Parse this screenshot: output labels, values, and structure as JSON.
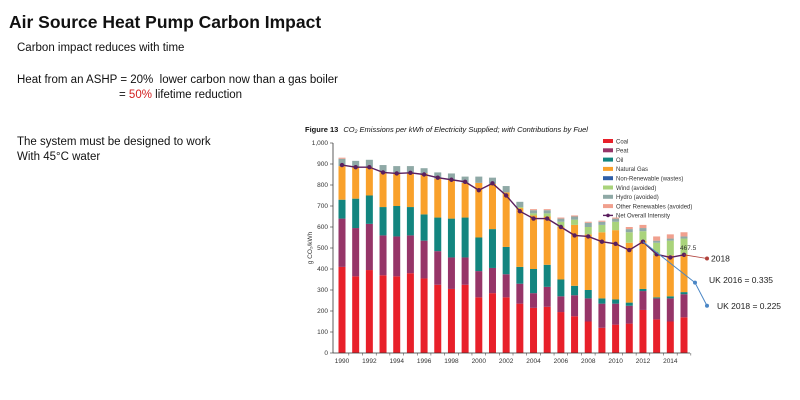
{
  "slide": {
    "title": "Air Source Heat Pump Carbon Impact",
    "line1": "Carbon impact reduces with time",
    "line2_prefix": "Heat from an ASHP = 20%  lower carbon now than a gas boiler",
    "line3_prefix": "= ",
    "line3_highlight": "50%",
    "line3_suffix": " lifetime reduction",
    "line4": "The system must be designed to work",
    "line5": "With 45°C water",
    "highlight_color": "#d21f1f"
  },
  "figure": {
    "label": "Figure 13",
    "caption": "CO₂ Emissions per kWh of Electricity Supplied; with Contributions by Fuel"
  },
  "annotations": {
    "last_value_label": "467.5",
    "point_2018_label": "2018",
    "uk2016_label": "UK 2016  = 0.335",
    "uk2018_label": "UK 2018  = 0.225",
    "projection_2018_value": 450,
    "uk2016_value": 335,
    "uk2018_value": 225,
    "red_line_color": "#b0403a",
    "blue_line_color": "#4a86c5"
  },
  "chart_data": {
    "type": "bar",
    "stacked": true,
    "title": "CO2 Emissions per kWh of Electricity Supplied; with Contributions by Fuel",
    "xlabel": "",
    "ylabel": "g CO₂/kWh",
    "ylim": [
      0,
      1000
    ],
    "yticks": [
      0,
      100,
      200,
      300,
      400,
      500,
      600,
      700,
      800,
      900,
      1000
    ],
    "ytick_labels": [
      "0",
      "100",
      "200",
      "300",
      "400",
      "500",
      "600",
      "700",
      "800",
      "900",
      "1,000"
    ],
    "xtick_labels": [
      "1990",
      "1992",
      "1994",
      "1996",
      "1998",
      "2000",
      "2002",
      "2004",
      "2006",
      "2008",
      "2010",
      "2012",
      "2014"
    ],
    "legend_position": "top-right",
    "grid": false,
    "categories": [
      "1990",
      "1991",
      "1992",
      "1993",
      "1994",
      "1995",
      "1996",
      "1997",
      "1998",
      "1999",
      "2000",
      "2001",
      "2002",
      "2003",
      "2004",
      "2005",
      "2006",
      "2007",
      "2008",
      "2009",
      "2010",
      "2011",
      "2012",
      "2013",
      "2014",
      "2015"
    ],
    "series": [
      {
        "name": "Coal",
        "color": "#e8202a",
        "values": [
          410,
          365,
          395,
          370,
          365,
          380,
          355,
          325,
          305,
          325,
          265,
          285,
          265,
          235,
          215,
          220,
          195,
          175,
          150,
          120,
          135,
          140,
          205,
          160,
          150,
          170
        ]
      },
      {
        "name": "Peat",
        "color": "#963568",
        "values": [
          230,
          230,
          220,
          190,
          190,
          180,
          180,
          160,
          150,
          130,
          125,
          120,
          110,
          95,
          70,
          95,
          75,
          100,
          110,
          115,
          100,
          85,
          90,
          100,
          110,
          110
        ]
      },
      {
        "name": "Oil",
        "color": "#13857f",
        "values": [
          90,
          140,
          135,
          135,
          145,
          135,
          125,
          160,
          185,
          190,
          160,
          185,
          130,
          80,
          115,
          105,
          80,
          45,
          40,
          25,
          20,
          15,
          10,
          5,
          10,
          10
        ]
      },
      {
        "name": "Natural Gas",
        "color": "#f9a12b",
        "values": [
          160,
          150,
          135,
          165,
          155,
          165,
          195,
          185,
          185,
          165,
          260,
          215,
          260,
          280,
          255,
          230,
          250,
          290,
          265,
          315,
          330,
          285,
          230,
          200,
          195,
          180
        ]
      },
      {
        "name": "Non-Renewable (wastes)",
        "color": "#2f5fa8",
        "values": [
          0,
          0,
          0,
          0,
          0,
          0,
          0,
          0,
          0,
          0,
          0,
          0,
          0,
          0,
          0,
          0,
          0,
          0,
          0,
          0,
          0,
          0,
          0,
          0,
          0,
          0
        ]
      },
      {
        "name": "Wind (avoided)",
        "color": "#a9d37b",
        "values": [
          0,
          0,
          0,
          0,
          0,
          0,
          0,
          0,
          0,
          0,
          0,
          0,
          0,
          5,
          10,
          15,
          25,
          25,
          35,
          35,
          40,
          50,
          45,
          60,
          70,
          75
        ]
      },
      {
        "name": "Hydro (avoided)",
        "color": "#8fa9a6",
        "values": [
          35,
          30,
          35,
          35,
          35,
          30,
          25,
          30,
          30,
          30,
          30,
          30,
          30,
          25,
          15,
          15,
          15,
          15,
          20,
          15,
          15,
          15,
          15,
          10,
          10,
          10
        ]
      },
      {
        "name": "Other Renewables (avoided)",
        "color": "#f0a08e",
        "values": [
          5,
          0,
          0,
          0,
          0,
          0,
          0,
          0,
          0,
          0,
          0,
          0,
          0,
          0,
          5,
          5,
          5,
          5,
          5,
          5,
          5,
          10,
          15,
          20,
          20,
          20
        ]
      }
    ],
    "line_series": {
      "name": "Net Overall Intensity",
      "color": "#5a1f5e",
      "values": [
        895,
        885,
        885,
        860,
        855,
        858,
        850,
        835,
        825,
        815,
        775,
        808,
        750,
        675,
        640,
        640,
        600,
        560,
        555,
        530,
        520,
        490,
        530,
        470,
        455,
        467.5
      ]
    }
  }
}
